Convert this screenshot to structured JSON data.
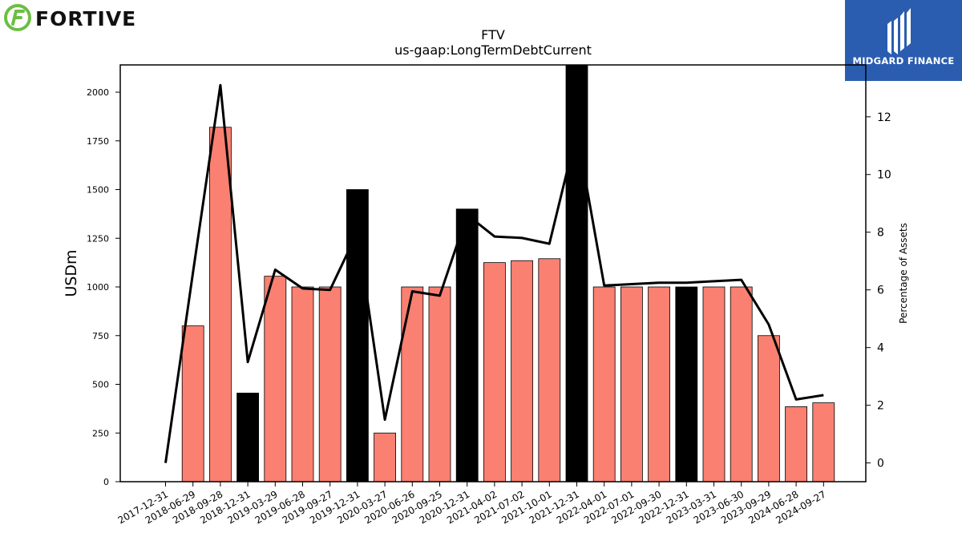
{
  "branding": {
    "company_logo_text": "FORTIVE",
    "company_logo_color": "#6cbe45",
    "partner_logo_text": "MIDGARD FINANCE",
    "partner_logo_bg": "#2a5db0"
  },
  "chart_data": {
    "type": "bar",
    "title": "FTV",
    "subtitle": "us-gaap:LongTermDebtCurrent",
    "ylabel": "USDm",
    "y2label": "Percentage of Assets",
    "ylim": [
      0,
      2140
    ],
    "y2lim": [
      -0.65,
      13.8
    ],
    "yticks": [
      0,
      250,
      500,
      750,
      1000,
      1250,
      1500,
      1750,
      2000
    ],
    "y2ticks": [
      0,
      2,
      4,
      6,
      8,
      10,
      12
    ],
    "categories": [
      "2017-12-31",
      "2018-06-29",
      "2018-09-28",
      "2018-12-31",
      "2019-03-29",
      "2019-06-28",
      "2019-09-27",
      "2019-12-31",
      "2020-03-27",
      "2020-06-26",
      "2020-09-25",
      "2020-12-31",
      "2021-04-02",
      "2021-07-02",
      "2021-10-01",
      "2021-12-31",
      "2022-04-01",
      "2022-07-01",
      "2022-09-30",
      "2022-12-31",
      "2023-03-31",
      "2023-06-30",
      "2023-09-29",
      "2024-06-28",
      "2024-09-27"
    ],
    "series": [
      {
        "type": "bar",
        "values": [
          0,
          800,
          1820,
          455,
          1055,
          1000,
          1000,
          1500,
          250,
          1000,
          1000,
          1400,
          1125,
          1135,
          1145,
          2140,
          1000,
          1000,
          1000,
          1000,
          1000,
          1000,
          750,
          385,
          405
        ],
        "highlight": [
          false,
          false,
          false,
          true,
          false,
          false,
          false,
          true,
          false,
          false,
          false,
          true,
          false,
          false,
          false,
          true,
          false,
          false,
          false,
          true,
          false,
          false,
          false,
          false,
          false
        ]
      },
      {
        "type": "line",
        "axis": "right",
        "values": [
          0,
          6.6,
          13.1,
          3.5,
          6.7,
          6.05,
          6.0,
          8.0,
          1.5,
          5.95,
          5.8,
          8.6,
          7.85,
          7.8,
          7.6,
          11.5,
          6.15,
          6.2,
          6.25,
          6.25,
          6.3,
          6.35,
          4.8,
          2.2,
          2.35
        ]
      }
    ],
    "colors": {
      "bar": "#fa8072",
      "highlight_bar": "#000000",
      "line": "#000000"
    },
    "grid": false,
    "legend": "none"
  }
}
